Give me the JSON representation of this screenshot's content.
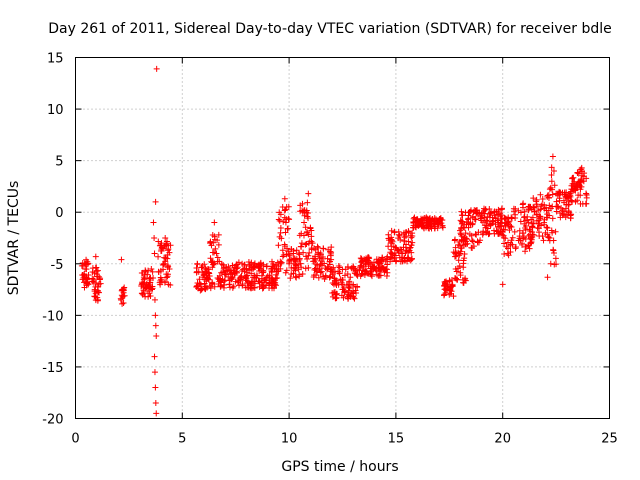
{
  "chart_data": {
    "type": "scatter",
    "title": "Day 261 of 2011, Sidereal Day-to-day VTEC variation (SDTVAR) for receiver bdle",
    "xlabel": "GPS time / hours",
    "ylabel": "SDTVAR / TECUs",
    "xlim": [
      0,
      25
    ],
    "ylim": [
      -20,
      15
    ],
    "xticks": [
      0,
      5,
      10,
      15,
      20,
      25
    ],
    "yticks": [
      -20,
      -15,
      -10,
      -5,
      0,
      5,
      10,
      15
    ],
    "xtick_labels": [
      "0",
      "5",
      "10",
      "15",
      "20",
      "25"
    ],
    "ytick_labels": [
      "-20",
      "-15",
      "-10",
      "-5",
      "0",
      "5",
      "10",
      "15"
    ],
    "grid": true,
    "marker": "+",
    "series": [
      {
        "name": "SDTVAR",
        "color": "#ff0000",
        "points": [
          [
            0.3,
            -5.2
          ],
          [
            0.35,
            -6.1
          ],
          [
            0.4,
            -6.8
          ],
          [
            0.42,
            -7.3
          ],
          [
            0.45,
            -5.5
          ],
          [
            0.5,
            -6.3
          ],
          [
            0.55,
            -4.8
          ],
          [
            0.6,
            -7.0
          ],
          [
            0.8,
            -5.8
          ],
          [
            0.85,
            -6.5
          ],
          [
            0.9,
            -7.5
          ],
          [
            0.92,
            -8.2
          ],
          [
            0.95,
            -4.3
          ],
          [
            1.0,
            -6.0
          ],
          [
            1.05,
            -8.5
          ],
          [
            1.1,
            -7.8
          ],
          [
            1.15,
            -6.4
          ],
          [
            2.15,
            -4.6
          ],
          [
            2.2,
            -7.5
          ],
          [
            2.25,
            -8.8
          ],
          [
            2.3,
            -8.1
          ],
          [
            3.1,
            -7.0
          ],
          [
            3.15,
            -8.0
          ],
          [
            3.2,
            -6.5
          ],
          [
            3.3,
            -7.4
          ],
          [
            3.4,
            -8.2
          ],
          [
            3.5,
            -6.8
          ],
          [
            3.55,
            -5.5
          ],
          [
            3.6,
            -7.2
          ],
          [
            3.65,
            -1.0
          ],
          [
            3.68,
            -2.5
          ],
          [
            3.7,
            -4.0
          ],
          [
            3.72,
            -8.5
          ],
          [
            3.74,
            -10.0
          ],
          [
            3.76,
            -11.0
          ],
          [
            3.78,
            -12.0
          ],
          [
            3.7,
            -14.0
          ],
          [
            3.72,
            -15.5
          ],
          [
            3.74,
            -17.0
          ],
          [
            3.76,
            -18.5
          ],
          [
            3.78,
            -19.5
          ],
          [
            3.75,
            1.0
          ],
          [
            3.8,
            13.9
          ],
          [
            3.9,
            -5.8
          ],
          [
            4.0,
            -6.5
          ],
          [
            4.1,
            -3.5
          ],
          [
            4.15,
            -5.0
          ],
          [
            4.2,
            -2.5
          ],
          [
            4.25,
            -6.0
          ],
          [
            4.3,
            -4.5
          ],
          [
            4.35,
            -7.0
          ],
          [
            4.4,
            -5.5
          ],
          [
            4.45,
            -3.2
          ],
          [
            5.7,
            -5.0
          ],
          [
            5.8,
            -6.5
          ],
          [
            5.9,
            -7.5
          ],
          [
            6.0,
            -6.0
          ],
          [
            6.1,
            -7.2
          ],
          [
            6.2,
            -5.5
          ],
          [
            6.3,
            -3.0
          ],
          [
            6.4,
            -6.8
          ],
          [
            6.5,
            -1.0
          ],
          [
            6.6,
            -4.0
          ],
          [
            6.7,
            -6.5
          ],
          [
            6.8,
            -7.2
          ],
          [
            6.9,
            -5.8
          ],
          [
            7.0,
            -6.6
          ],
          [
            7.2,
            -7.0
          ],
          [
            7.4,
            -5.6
          ],
          [
            7.6,
            -6.8
          ],
          [
            7.8,
            -5.0
          ],
          [
            8.0,
            -6.4
          ],
          [
            8.2,
            -7.1
          ],
          [
            8.4,
            -5.3
          ],
          [
            8.6,
            -6.7
          ],
          [
            8.8,
            -5.8
          ],
          [
            9.0,
            -6.2
          ],
          [
            9.2,
            -6.9
          ],
          [
            9.4,
            -5.1
          ],
          [
            9.5,
            -3.2
          ],
          [
            9.6,
            -2.0
          ],
          [
            9.7,
            0.5
          ],
          [
            9.8,
            1.3
          ],
          [
            9.85,
            -1.0
          ],
          [
            9.9,
            -3.5
          ],
          [
            10.0,
            -5.0
          ],
          [
            10.1,
            -6.0
          ],
          [
            10.2,
            -4.0
          ],
          [
            10.3,
            -5.5
          ],
          [
            10.5,
            -4.5
          ],
          [
            10.6,
            -3.0
          ],
          [
            10.7,
            -1.0
          ],
          [
            10.8,
            0.0
          ],
          [
            10.9,
            1.8
          ],
          [
            11.0,
            -1.5
          ],
          [
            11.1,
            -3.0
          ],
          [
            11.2,
            -4.5
          ],
          [
            11.4,
            -5.5
          ],
          [
            11.6,
            -3.5
          ],
          [
            11.8,
            -4.5
          ],
          [
            12.0,
            -5.5
          ],
          [
            12.1,
            -7.0
          ],
          [
            12.2,
            -8.0
          ],
          [
            12.4,
            -6.5
          ],
          [
            12.6,
            -7.8
          ],
          [
            12.8,
            -7.0
          ],
          [
            13.0,
            -5.5
          ],
          [
            13.2,
            -6.0
          ],
          [
            13.4,
            -5.2
          ],
          [
            13.6,
            -5.8
          ],
          [
            13.8,
            -5.0
          ],
          [
            14.0,
            -5.4
          ],
          [
            14.2,
            -5.0
          ],
          [
            14.4,
            -4.6
          ],
          [
            14.6,
            -4.3
          ],
          [
            14.8,
            -4.0
          ],
          [
            15.0,
            -4.2
          ],
          [
            15.2,
            -3.6
          ],
          [
            15.4,
            -2.8
          ],
          [
            15.6,
            -2.0
          ],
          [
            15.8,
            -1.5
          ],
          [
            16.0,
            -1.0
          ],
          [
            16.2,
            -0.8
          ],
          [
            16.4,
            -0.6
          ],
          [
            16.6,
            -0.7
          ],
          [
            16.8,
            -0.9
          ],
          [
            17.0,
            -1.2
          ],
          [
            17.2,
            -1.5
          ],
          [
            17.3,
            -7.0
          ],
          [
            17.4,
            -7.5
          ],
          [
            17.5,
            -8.0
          ],
          [
            17.6,
            -7.2
          ],
          [
            17.8,
            -5.5
          ],
          [
            18.0,
            -4.0
          ],
          [
            18.2,
            -2.5
          ],
          [
            18.4,
            -1.5
          ],
          [
            18.6,
            -0.5
          ],
          [
            18.8,
            0.2
          ],
          [
            19.0,
            -0.8
          ],
          [
            19.2,
            -1.5
          ],
          [
            19.4,
            -0.5
          ],
          [
            19.6,
            0.0
          ],
          [
            19.8,
            -1.0
          ],
          [
            20.0,
            -7.0
          ],
          [
            20.2,
            -1.2
          ],
          [
            20.4,
            -0.5
          ],
          [
            20.6,
            -3.5
          ],
          [
            20.8,
            -1.8
          ],
          [
            21.0,
            -0.5
          ],
          [
            21.2,
            0.5
          ],
          [
            21.4,
            -1.5
          ],
          [
            21.6,
            -0.2
          ],
          [
            21.8,
            0.6
          ],
          [
            22.0,
            -2.0
          ],
          [
            22.1,
            -6.3
          ],
          [
            22.2,
            -2.5
          ],
          [
            22.25,
            -5.0
          ],
          [
            22.3,
            3.0
          ],
          [
            22.35,
            5.4
          ],
          [
            22.4,
            4.0
          ],
          [
            22.5,
            1.8
          ],
          [
            22.6,
            0.5
          ],
          [
            22.7,
            -0.5
          ],
          [
            22.8,
            0.2
          ],
          [
            23.0,
            1.5
          ],
          [
            23.1,
            0.0
          ],
          [
            23.2,
            2.0
          ],
          [
            23.4,
            2.5
          ],
          [
            23.5,
            3.8
          ],
          [
            23.6,
            2.6
          ],
          [
            23.7,
            4.3
          ],
          [
            23.8,
            3.0
          ],
          [
            23.9,
            1.8
          ]
        ],
        "bands": [
          [
            0.28,
            0.62,
            -7.4,
            -4.6
          ],
          [
            0.78,
            1.18,
            -8.6,
            -5.2
          ],
          [
            2.12,
            2.32,
            -8.9,
            -7.3
          ],
          [
            3.05,
            3.65,
            -8.2,
            -5.6
          ],
          [
            3.85,
            4.45,
            -7.2,
            -2.8
          ],
          [
            5.65,
            6.25,
            -7.6,
            -5.0
          ],
          [
            6.25,
            6.75,
            -7.4,
            -2.0
          ],
          [
            6.75,
            9.5,
            -7.4,
            -4.8
          ],
          [
            9.5,
            10.0,
            -6.0,
            0.8
          ],
          [
            10.0,
            10.5,
            -6.5,
            -3.5
          ],
          [
            10.5,
            11.1,
            -6.0,
            1.2
          ],
          [
            11.1,
            12.0,
            -6.5,
            -3.2
          ],
          [
            12.0,
            13.2,
            -8.4,
            -5.2
          ],
          [
            13.2,
            14.6,
            -6.2,
            -4.2
          ],
          [
            14.6,
            15.8,
            -4.8,
            -1.8
          ],
          [
            15.8,
            17.2,
            -1.6,
            -0.5
          ],
          [
            17.25,
            17.7,
            -8.3,
            -6.5
          ],
          [
            17.7,
            18.3,
            -7.0,
            -2.0
          ],
          [
            18.0,
            19.0,
            -3.5,
            0.2
          ],
          [
            19.0,
            20.0,
            -2.2,
            0.4
          ],
          [
            20.0,
            20.5,
            -4.5,
            -0.5
          ],
          [
            20.5,
            21.4,
            -3.8,
            1.0
          ],
          [
            21.4,
            22.2,
            -2.8,
            1.8
          ],
          [
            22.2,
            22.5,
            -5.6,
            4.8
          ],
          [
            22.5,
            23.2,
            -0.6,
            2.0
          ],
          [
            23.2,
            23.95,
            0.8,
            4.2
          ]
        ]
      }
    ]
  }
}
